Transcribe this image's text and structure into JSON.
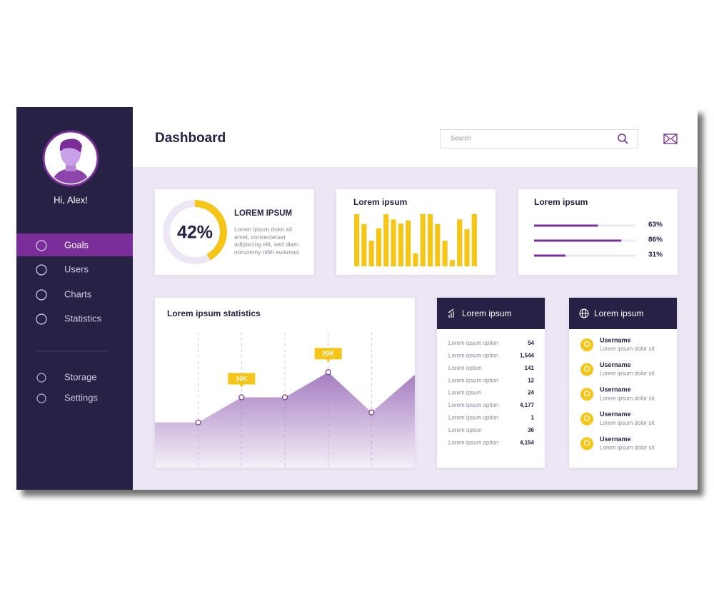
{
  "sidebar": {
    "greeting": "Hi, Alex!",
    "menu": [
      "Goals",
      "Users",
      "Charts",
      "Statistics"
    ],
    "menu_bottom": [
      "Storage",
      "Settings"
    ],
    "active": 0
  },
  "header": {
    "title": "Dashboard",
    "search_placeholder": "Search"
  },
  "summary_card": {
    "value": 42,
    "value_label": "42%",
    "title": "LOREM IPSUM",
    "text": "Lorem ipsum dolor sit amet, consectetuer adipiscing elit, sed diam nonummy nibh euismod"
  },
  "bar_card": {
    "type": "bar",
    "title": "Lorem ipsum",
    "values": [
      100,
      81,
      49,
      73,
      100,
      90,
      82,
      88,
      25,
      100,
      100,
      81,
      49,
      12,
      90,
      71,
      100
    ],
    "ylim": [
      0,
      100
    ],
    "color": "#f5c518"
  },
  "progress_card": {
    "title": "Lorem ipsum",
    "items": [
      {
        "value": 63,
        "label": "63%"
      },
      {
        "value": 86,
        "label": "86%"
      },
      {
        "value": 31,
        "label": "31%"
      }
    ],
    "color": "#7b2d9a"
  },
  "stats_card": {
    "type": "area",
    "title": "Lorem ipsum statistics",
    "values": [
      0,
      0,
      10,
      10,
      20,
      4,
      19
    ],
    "value_labels": [
      null,
      null,
      "10K",
      null,
      "20K",
      null,
      null
    ],
    "ylim": [
      -18,
      36
    ],
    "color": "#a57cc0"
  },
  "table_card": {
    "title": "Lorem ipsum",
    "rows": [
      {
        "label": "Lorem ipsum option",
        "value": 54
      },
      {
        "label": "Lorem ipsum option",
        "value": {
          "value": 1544,
          "label": "1,544"
        }
      },
      {
        "label": "Lorem option",
        "value": 141
      },
      {
        "label": "Lorem ipsum option",
        "value": 12
      },
      {
        "label": "Lorem ipsum",
        "value": 24
      },
      {
        "label": "Lorem ipsum option",
        "value": {
          "value": 4177,
          "label": "4,177"
        }
      },
      {
        "label": "Lorem ipsum option",
        "value": 1
      },
      {
        "label": "Lorem option",
        "value": 36
      },
      {
        "label": "Lorem ipsum option",
        "value": {
          "value": 4154,
          "label": "4,154"
        }
      }
    ]
  },
  "user_card": {
    "title": "Lorem ipsum",
    "users": [
      {
        "name": "Username",
        "text": "Lorem ipsum dolor sit"
      },
      {
        "name": "Username",
        "text": "Lorem ipsum dolor sit"
      },
      {
        "name": "Username",
        "text": "Lorem ipsum dolor sit"
      },
      {
        "name": "Username",
        "text": "Lorem ipsum dolor sit"
      },
      {
        "name": "Username",
        "text": "Lorem ipsum dolor sit"
      }
    ]
  }
}
